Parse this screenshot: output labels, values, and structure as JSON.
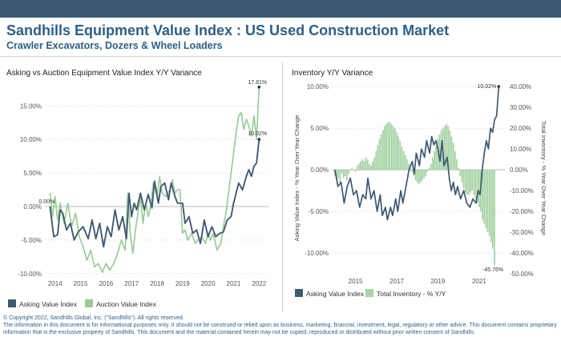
{
  "header": {
    "title": "Sandhills Equipment Value Index : US Used Construction Market",
    "subtitle": "Crawler Excavators, Dozers &  Wheel Loaders"
  },
  "colors": {
    "asking": "#3f5870",
    "auction": "#9ccb9a",
    "inventory": "#a7d3a6",
    "brand": "#2e5f86",
    "topbar": "#3e5a73"
  },
  "chart_data": [
    {
      "type": "line",
      "title": "Asking vs Auction Equipment Value Index Y/Y Variance",
      "xlabel": "",
      "ylabel": "",
      "x_ticks": [
        "2014",
        "2015",
        "2016",
        "2017",
        "2018",
        "2019",
        "2020",
        "2021",
        "2022"
      ],
      "y_ticks": [
        "15.00%",
        "10.00%",
        "5.00%",
        "0.00%",
        "-5.00%",
        "-10.00%"
      ],
      "xlim": [
        2013.6,
        2022.4
      ],
      "ylim": [
        -10.5,
        18.5
      ],
      "grid": true,
      "legend": "bottom-left",
      "annotations": [
        {
          "text": "17.81%",
          "series": "Auction Value Index"
        },
        {
          "text": "10.02%",
          "series": "Asking Value Index"
        },
        {
          "text": "0.00%",
          "series": "Asking Value Index"
        }
      ],
      "series": [
        {
          "name": "Asking Value Index",
          "color_key": "asking",
          "points": [
            [
              2013.8,
              0.0
            ],
            [
              2013.95,
              -4.5
            ],
            [
              2014.1,
              -4.2
            ],
            [
              2014.2,
              -0.5
            ],
            [
              2014.3,
              -1.0
            ],
            [
              2014.45,
              -3.5
            ],
            [
              2014.6,
              -2.5
            ],
            [
              2014.75,
              -5.0
            ],
            [
              2014.9,
              -3.8
            ],
            [
              2015.1,
              -3.0
            ],
            [
              2015.3,
              -4.8
            ],
            [
              2015.45,
              -2.0
            ],
            [
              2015.6,
              -4.8
            ],
            [
              2015.75,
              -2.5
            ],
            [
              2015.9,
              -6.0
            ],
            [
              2016.05,
              -3.0
            ],
            [
              2016.2,
              -4.5
            ],
            [
              2016.35,
              -0.5
            ],
            [
              2016.5,
              -3.5
            ],
            [
              2016.65,
              -1.5
            ],
            [
              2016.8,
              -4.8
            ],
            [
              2016.9,
              2.0
            ],
            [
              2017.0,
              -1.5
            ],
            [
              2017.1,
              0.5
            ],
            [
              2017.2,
              -0.5
            ],
            [
              2017.35,
              2.0
            ],
            [
              2017.5,
              -0.5
            ],
            [
              2017.65,
              1.8
            ],
            [
              2017.8,
              -0.2
            ],
            [
              2017.9,
              3.8
            ],
            [
              2018.05,
              0.5
            ],
            [
              2018.15,
              3.0
            ],
            [
              2018.3,
              3.5
            ],
            [
              2018.45,
              1.0
            ],
            [
              2018.55,
              3.5
            ],
            [
              2018.7,
              1.5
            ],
            [
              2018.8,
              0.5
            ],
            [
              2019.0,
              0.5
            ],
            [
              2019.1,
              -2.5
            ],
            [
              2019.25,
              -1.5
            ],
            [
              2019.4,
              -4.0
            ],
            [
              2019.55,
              -3.5
            ],
            [
              2019.7,
              -5.5
            ],
            [
              2019.85,
              -2.0
            ],
            [
              2020.0,
              -4.5
            ],
            [
              2020.15,
              -3.0
            ],
            [
              2020.3,
              -4.5
            ],
            [
              2020.45,
              -4.0
            ],
            [
              2020.6,
              -3.8
            ],
            [
              2020.75,
              -2.0
            ],
            [
              2020.9,
              -1.5
            ],
            [
              2021.0,
              0.5
            ],
            [
              2021.1,
              2.0
            ],
            [
              2021.2,
              3.5
            ],
            [
              2021.35,
              2.5
            ],
            [
              2021.5,
              4.5
            ],
            [
              2021.6,
              5.5
            ],
            [
              2021.7,
              4.5
            ],
            [
              2021.8,
              6.0
            ],
            [
              2021.9,
              6.5
            ],
            [
              2022.0,
              10.02
            ]
          ]
        },
        {
          "name": "Auction Value Index",
          "color_key": "auction",
          "points": [
            [
              2013.8,
              2.0
            ],
            [
              2013.9,
              -1.5
            ],
            [
              2014.0,
              1.5
            ],
            [
              2014.1,
              -2.0
            ],
            [
              2014.2,
              0.5
            ],
            [
              2014.35,
              -2.5
            ],
            [
              2014.5,
              0.5
            ],
            [
              2014.65,
              -3.0
            ],
            [
              2014.8,
              -1.0
            ],
            [
              2014.95,
              -4.5
            ],
            [
              2015.1,
              -6.0
            ],
            [
              2015.25,
              -8.0
            ],
            [
              2015.4,
              -6.5
            ],
            [
              2015.55,
              -9.0
            ],
            [
              2015.7,
              -8.5
            ],
            [
              2015.85,
              -9.8
            ],
            [
              2016.0,
              -8.5
            ],
            [
              2016.15,
              -9.5
            ],
            [
              2016.3,
              -8.5
            ],
            [
              2016.45,
              -7.0
            ],
            [
              2016.6,
              -5.0
            ],
            [
              2016.75,
              -6.5
            ],
            [
              2016.85,
              2.0
            ],
            [
              2016.95,
              -4.0
            ],
            [
              2017.05,
              -7.0
            ],
            [
              2017.15,
              -3.5
            ],
            [
              2017.25,
              -1.0
            ],
            [
              2017.35,
              1.5
            ],
            [
              2017.45,
              -2.5
            ],
            [
              2017.55,
              0.5
            ],
            [
              2017.65,
              -1.5
            ],
            [
              2017.75,
              0.0
            ],
            [
              2017.85,
              3.5
            ],
            [
              2018.0,
              1.5
            ],
            [
              2018.1,
              4.5
            ],
            [
              2018.2,
              2.0
            ],
            [
              2018.35,
              1.5
            ],
            [
              2018.5,
              2.5
            ],
            [
              2018.6,
              4.0
            ],
            [
              2018.7,
              2.0
            ],
            [
              2018.8,
              2.5
            ],
            [
              2018.9,
              2.5
            ],
            [
              2019.0,
              -4.0
            ],
            [
              2019.1,
              -3.5
            ],
            [
              2019.2,
              -5.0
            ],
            [
              2019.35,
              -4.0
            ],
            [
              2019.5,
              -5.5
            ],
            [
              2019.6,
              -5.0
            ],
            [
              2019.75,
              -4.5
            ],
            [
              2019.9,
              -5.5
            ],
            [
              2020.0,
              -4.0
            ],
            [
              2020.1,
              -5.0
            ],
            [
              2020.2,
              -4.0
            ],
            [
              2020.35,
              -6.5
            ],
            [
              2020.5,
              -5.5
            ],
            [
              2020.6,
              -3.0
            ],
            [
              2020.7,
              -1.0
            ],
            [
              2020.8,
              2.0
            ],
            [
              2020.9,
              5.0
            ],
            [
              2021.0,
              8.0
            ],
            [
              2021.1,
              11.0
            ],
            [
              2021.2,
              13.5
            ],
            [
              2021.3,
              14.0
            ],
            [
              2021.4,
              11.5
            ],
            [
              2021.5,
              13.0
            ],
            [
              2021.6,
              12.0
            ],
            [
              2021.7,
              10.5
            ],
            [
              2021.8,
              13.5
            ],
            [
              2021.9,
              10.0
            ],
            [
              2022.0,
              17.81
            ]
          ]
        }
      ]
    },
    {
      "type": "bar+line",
      "title": "Inventory Y/Y Variance",
      "xlabel": "",
      "ylabel_left": "Asking Value Index - % Year Over Year Change",
      "ylabel_right": "Total Inventory - % Year Over Year Change",
      "x_ticks": [
        "2015",
        "2017",
        "2019",
        "2021"
      ],
      "y_ticks_left": [
        "10.00%",
        "5.00%",
        "0.00%",
        "-5.00%",
        "-10.00%"
      ],
      "y_ticks_right": [
        "40.00%",
        "30.00%",
        "20.00%",
        "10.00%",
        "0.00%",
        "-10.00%",
        "-20.00%",
        "-30.00%",
        "-40.00%",
        "-50.00%"
      ],
      "xlim": [
        2013.85,
        2022.25
      ],
      "ylim_left": [
        -12.5,
        10.5
      ],
      "ylim_right": [
        -50,
        42
      ],
      "grid": true,
      "legend": "bottom-left",
      "annotations": [
        {
          "text": "10.02%",
          "series": "Asking Value Index"
        },
        {
          "text": "-45.76%",
          "series": "Total Inventory - % Y/Y"
        }
      ],
      "series": [
        {
          "name": "Asking Value Index",
          "color_key": "asking",
          "axis": "left",
          "points": [
            [
              2014.0,
              0.0
            ],
            [
              2014.15,
              -2.0
            ],
            [
              2014.3,
              -1.5
            ],
            [
              2014.45,
              -4.0
            ],
            [
              2014.6,
              -2.0
            ],
            [
              2014.75,
              -1.0
            ],
            [
              2014.9,
              -3.0
            ],
            [
              2015.05,
              -2.5
            ],
            [
              2015.2,
              -4.5
            ],
            [
              2015.35,
              -3.0
            ],
            [
              2015.5,
              -3.5
            ],
            [
              2015.6,
              -1.0
            ],
            [
              2015.75,
              -3.5
            ],
            [
              2015.9,
              -2.5
            ],
            [
              2016.05,
              -5.0
            ],
            [
              2016.2,
              -3.0
            ],
            [
              2016.3,
              -5.5
            ],
            [
              2016.45,
              -4.5
            ],
            [
              2016.55,
              -6.0
            ],
            [
              2016.7,
              -4.5
            ],
            [
              2016.8,
              -5.5
            ],
            [
              2016.95,
              -3.5
            ],
            [
              2017.05,
              -5.0
            ],
            [
              2017.2,
              -2.5
            ],
            [
              2017.3,
              -4.0
            ],
            [
              2017.45,
              -2.0
            ],
            [
              2017.6,
              0.0
            ],
            [
              2017.75,
              1.0
            ],
            [
              2017.85,
              -0.5
            ],
            [
              2017.95,
              2.0
            ],
            [
              2018.1,
              0.5
            ],
            [
              2018.2,
              2.5
            ],
            [
              2018.35,
              1.5
            ],
            [
              2018.45,
              3.5
            ],
            [
              2018.6,
              2.0
            ],
            [
              2018.7,
              4.0
            ],
            [
              2018.8,
              3.0
            ],
            [
              2018.9,
              3.5
            ],
            [
              2019.0,
              2.5
            ],
            [
              2019.1,
              1.0
            ],
            [
              2019.2,
              3.5
            ],
            [
              2019.3,
              0.5
            ],
            [
              2019.45,
              1.5
            ],
            [
              2019.55,
              -1.0
            ],
            [
              2019.65,
              -2.5
            ],
            [
              2019.75,
              -1.5
            ],
            [
              2019.85,
              -3.0
            ],
            [
              2019.95,
              -2.0
            ],
            [
              2020.1,
              -3.5
            ],
            [
              2020.25,
              -2.5
            ],
            [
              2020.4,
              -4.0
            ],
            [
              2020.55,
              -4.5
            ],
            [
              2020.7,
              -3.5
            ],
            [
              2020.85,
              -4.0
            ],
            [
              2020.95,
              -2.5
            ],
            [
              2021.05,
              -3.0
            ],
            [
              2021.15,
              0.0
            ],
            [
              2021.25,
              2.0
            ],
            [
              2021.35,
              3.5
            ],
            [
              2021.45,
              2.5
            ],
            [
              2021.55,
              5.0
            ],
            [
              2021.65,
              4.5
            ],
            [
              2021.75,
              6.0
            ],
            [
              2021.85,
              6.5
            ],
            [
              2021.95,
              10.02
            ]
          ]
        },
        {
          "name": "Total Inventory - % Y/Y",
          "type": "bar",
          "color_key": "inventory",
          "axis": "right",
          "x_start": 2014.0,
          "x_step": 0.0833,
          "values": [
            -3,
            -5,
            -4,
            -6,
            -2,
            -4,
            -3,
            -5,
            -2,
            0,
            1,
            0,
            -1,
            2,
            3,
            4,
            5,
            4,
            6,
            5,
            3,
            2,
            4,
            6,
            9,
            12,
            15,
            17,
            19,
            21,
            22,
            23,
            23,
            22,
            21,
            20,
            18,
            16,
            14,
            11,
            9,
            7,
            5,
            3,
            1,
            -1,
            -3,
            -5,
            -6,
            -7,
            -6,
            -5,
            -4,
            -3,
            -1,
            1,
            3,
            6,
            9,
            12,
            15,
            17,
            19,
            20,
            21,
            22,
            21,
            19,
            16,
            13,
            9,
            5,
            1,
            -3,
            -6,
            -9,
            -11,
            -12,
            -12,
            -11,
            -10,
            -12,
            -14,
            -16,
            -18,
            -20,
            -24,
            -26,
            -28,
            -30,
            -32,
            -35,
            -38,
            -45.76
          ]
        }
      ]
    }
  ],
  "legends": {
    "left": [
      {
        "label": "Asking Value Index",
        "color_key": "asking"
      },
      {
        "label": "Auction Value Index",
        "color_key": "auction"
      }
    ],
    "right": [
      {
        "label": "Asking Value Index",
        "color_key": "asking"
      },
      {
        "label": "Total Inventory - % Y/Y",
        "color_key": "inventory"
      }
    ]
  },
  "footer": {
    "copyright": "© Copyright 2022, Sandhills Global, Inc. (\"Sandhills\"). All rights reserved.",
    "line1": "The information in this document is for informational purposes only.  It should not be construed or relied upon as business, marketing, financial, investment, legal, regulatory or other advice. This document contains proprietary",
    "line2": "information that is the exclusive property of Sandhills. This document and the material contained herein may not be copied, reproduced or distributed without prior written consent of Sandhills."
  }
}
